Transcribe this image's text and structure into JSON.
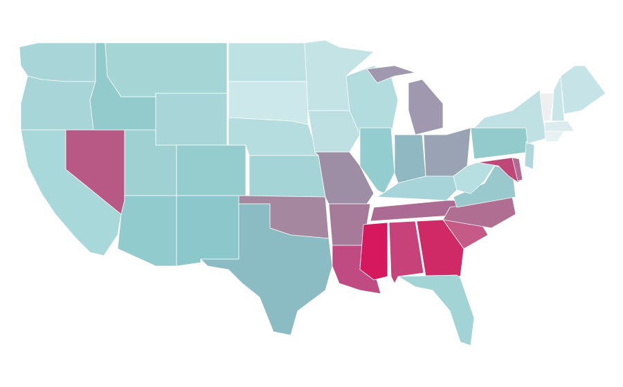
{
  "map": {
    "regions": [
      {
        "fill": "#a7d5d8"
      },
      {
        "fill": "#a8d6d8"
      },
      {
        "fill": "#a9d8db"
      },
      {
        "fill": "#b85985"
      },
      {
        "fill": "#93cbcd"
      },
      {
        "fill": "#a6d5d6"
      },
      {
        "fill": "#a7d5d8"
      },
      {
        "fill": "#9fd1d3"
      },
      {
        "fill": "#92cbcd"
      },
      {
        "fill": "#95cdcf"
      },
      {
        "fill": "#8cc7cb"
      },
      {
        "fill": "#bee1e3"
      },
      {
        "fill": "#cde8ea"
      },
      {
        "fill": "#b5dcde"
      },
      {
        "fill": "#a5d4d6"
      },
      {
        "fill": "#a5879f"
      },
      {
        "fill": "#8bbbc3"
      },
      {
        "fill": "#c3e3e5"
      },
      {
        "fill": "#bee0e3"
      },
      {
        "fill": "#9d8ea6"
      },
      {
        "fill": "#a57b99"
      },
      {
        "fill": "#c04a82"
      },
      {
        "fill": "#b3dcde"
      },
      {
        "fill": "#93cdd0"
      },
      {
        "fill": "#9f98ae"
      },
      {
        "fill": "#8fb8c2"
      },
      {
        "fill": "#99a3b3"
      },
      {
        "fill": "#a6d4d8"
      },
      {
        "fill": "#ab6b93"
      },
      {
        "fill": "#d6185e"
      },
      {
        "fill": "#c74278"
      },
      {
        "fill": "#d02a66"
      },
      {
        "fill": "#a2d4d6"
      },
      {
        "fill": "#c55a86"
      },
      {
        "fill": "#b06f92"
      },
      {
        "fill": "#99c9cd"
      },
      {
        "fill": "#b7dee0"
      },
      {
        "fill": "#93cbcd"
      },
      {
        "fill": "#be4979"
      },
      {
        "fill": "#b36a92"
      },
      {
        "fill": "#b0d8dc"
      },
      {
        "fill": "#c0e1e3"
      },
      {
        "fill": "#eef0f0"
      },
      {
        "fill": "#c8e5e7"
      },
      {
        "fill": "#c6e4e7"
      },
      {
        "fill": "#dcecee"
      },
      {
        "fill": "#e7f1f2"
      }
    ]
  }
}
